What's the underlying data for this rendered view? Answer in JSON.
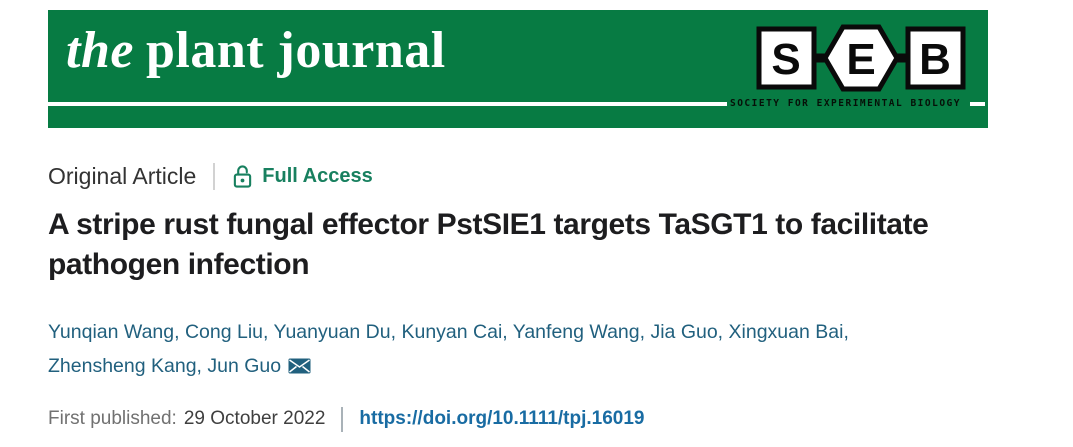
{
  "banner": {
    "journal_title": {
      "italic": "the",
      "rest": "plant journal"
    },
    "seb_logo": {
      "letters": [
        "S",
        "E",
        "B"
      ],
      "caption": "SOCIETY FOR EXPERIMENTAL BIOLOGY"
    }
  },
  "article": {
    "type_label": "Original Article",
    "access": {
      "label": "Full Access",
      "icon": "open-lock-icon"
    },
    "title": "A stripe rust fungal effector PstSIE1 targets TaSGT1 to facilitate pathogen infection",
    "title_lines": [
      "A stripe rust fungal effector PstSIE1 targets TaSGT1 to facilitate",
      "pathogen infection"
    ],
    "authors": [
      "Yunqian Wang",
      "Cong Liu",
      "Yuanyuan Du",
      "Kunyan Cai",
      "Yanfeng Wang",
      "Jia Guo",
      "Xingxuan Bai",
      "Zhensheng Kang",
      "Jun Guo"
    ],
    "authors_separator": ", ",
    "authors_line_break_after_index": 6,
    "corresponding_author": "Jun Guo",
    "corresponding_author_icon": "envelope-icon",
    "published": {
      "label": "First published:",
      "date": "29 October 2022"
    },
    "doi": "https://doi.org/10.1111/tpj.16019"
  },
  "colors": {
    "banner_green": "#077B43",
    "access_teal": "#18805F",
    "author_blue": "#21607E",
    "doi_link_blue": "#196CA3",
    "muted_gray": "#717171",
    "title_dark": "#1D1D1F"
  }
}
